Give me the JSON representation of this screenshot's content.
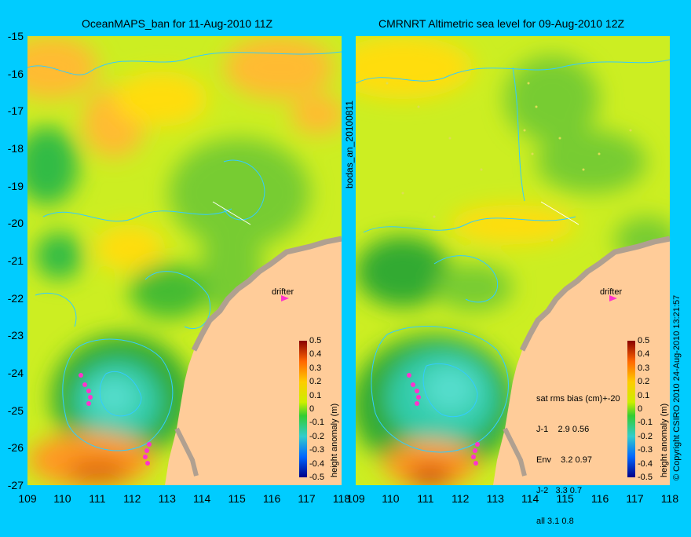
{
  "left_panel": {
    "title": "OceanMAPS_ban for 11-Aug-2010 11Z",
    "drifter_label": "drifter",
    "colorbar_label": "height anomaly (m)"
  },
  "right_panel": {
    "title": "CMRNRT Altimetric sea level  for 09-Aug-2010 12Z",
    "drifter_label": "drifter",
    "colorbar_label": "height anomaly (m)",
    "stats_header": "sat rms bias (cm)+-20",
    "stats_rows": [
      "J-1    2.9 0.56",
      "Env    3.2 0.97",
      "J-2   3.3 0.7",
      "all 3.1 0.8"
    ]
  },
  "side_label": "bodas_an_20100811",
  "copyright": "© Copyright CSIRO 2010   24-Aug-2010 13:21:57",
  "y_ticks": [
    "-15",
    "-16",
    "-17",
    "-18",
    "-19",
    "-20",
    "-21",
    "-22",
    "-23",
    "-24",
    "-25",
    "-26",
    "-27"
  ],
  "x_ticks_left": [
    "109",
    "110",
    "111",
    "112",
    "113",
    "114",
    "115",
    "116",
    "117",
    "118"
  ],
  "x_ticks_right": [
    "109",
    "110",
    "111",
    "112",
    "113",
    "114",
    "115",
    "116",
    "117",
    "118"
  ],
  "colorbar_ticks": [
    "0.5",
    "0.4",
    "0.3",
    "0.2",
    "0.1",
    "0",
    "-0.1",
    "-0.2",
    "-0.3",
    "-0.4",
    "-0.5"
  ],
  "colors": {
    "background": "#00ccff",
    "land": "#ffcc99",
    "coast_band": "#b0a090",
    "contour": "#33ccff",
    "drifter": "#ff33cc"
  }
}
